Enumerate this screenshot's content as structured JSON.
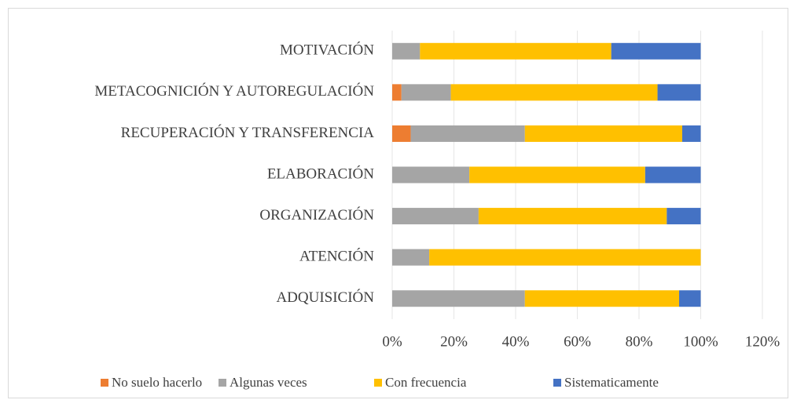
{
  "chart_data": {
    "type": "stacked-barh",
    "categories": [
      "MOTIVACIÓN",
      "METACOGNICIÓN Y AUTOREGULACIÓN",
      "RECUPERACIÓN Y TRANSFERENCIA",
      "ELABORACIÓN",
      "ORGANIZACIÓN",
      "ATENCIÓN",
      "ADQUISICIÓN"
    ],
    "series": [
      {
        "name": "No suelo hacerlo",
        "color": "#ed7d31",
        "values": [
          0,
          3,
          6,
          0,
          0,
          0,
          0
        ]
      },
      {
        "name": "Algunas veces",
        "color": "#a5a5a5",
        "values": [
          9,
          16,
          37,
          25,
          28,
          12,
          43
        ]
      },
      {
        "name": "Con frecuencia",
        "color": "#ffc000",
        "values": [
          62,
          67,
          51,
          57,
          61,
          88,
          50
        ]
      },
      {
        "name": "Sistematicamente",
        "color": "#4472c4",
        "values": [
          29,
          14,
          6,
          18,
          11,
          0,
          7
        ]
      }
    ],
    "xlim": [
      0,
      120
    ],
    "xticks": [
      {
        "value": 0,
        "label": "0%"
      },
      {
        "value": 20,
        "label": "20%"
      },
      {
        "value": 40,
        "label": "40%"
      },
      {
        "value": 60,
        "label": "60%"
      },
      {
        "value": 80,
        "label": "80%"
      },
      {
        "value": 100,
        "label": "100%"
      },
      {
        "value": 120,
        "label": "120%"
      }
    ],
    "grid": true,
    "legend": "bottom"
  }
}
